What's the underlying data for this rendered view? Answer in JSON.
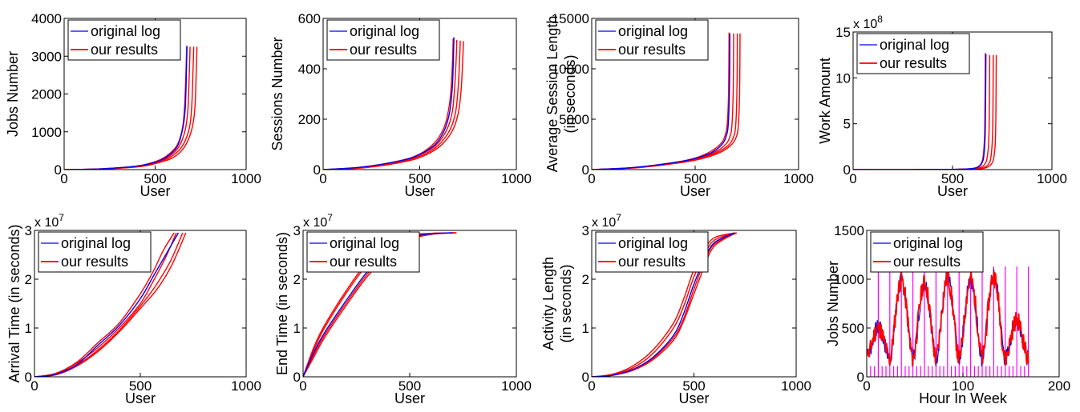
{
  "series_legend": [
    "original log",
    "our results"
  ],
  "colors": {
    "original": "#0000ff",
    "results": "#ff0000",
    "marker": "#ff00ff",
    "axis": "#000000"
  },
  "chart_data": [
    {
      "type": "line",
      "xlabel": "User",
      "ylabel": [
        "Jobs Number"
      ],
      "xlim": [
        0,
        1000
      ],
      "ylim": [
        0,
        4000
      ],
      "xticks": [
        "0",
        "500",
        "1000"
      ],
      "yticks": [
        "0",
        "1000",
        "2000",
        "3000",
        "4000"
      ],
      "exponent": "",
      "curve": "cdf_tail",
      "series": [
        {
          "name": "original log",
          "x": [
            0,
            200,
            400,
            500,
            560,
            620,
            650,
            665,
            672,
            675
          ],
          "y": [
            0,
            20,
            90,
            200,
            330,
            600,
            1050,
            1600,
            2600,
            3270
          ]
        },
        {
          "name": "our results",
          "x": [
            0,
            200,
            400,
            500,
            560,
            620,
            650,
            662,
            670,
            673
          ],
          "y": [
            0,
            20,
            95,
            210,
            350,
            640,
            1100,
            1700,
            2700,
            3270
          ]
        },
        {
          "name": "",
          "x": [
            0,
            200,
            400,
            500,
            570,
            630,
            665,
            680,
            688,
            692
          ],
          "y": [
            0,
            18,
            85,
            195,
            330,
            600,
            1050,
            1600,
            2600,
            3250
          ]
        },
        {
          "name": "",
          "x": [
            0,
            200,
            400,
            500,
            580,
            645,
            685,
            700,
            708,
            712
          ],
          "y": [
            0,
            16,
            80,
            185,
            320,
            590,
            1040,
            1600,
            2600,
            3250
          ]
        },
        {
          "name": "",
          "x": [
            0,
            220,
            420,
            520,
            600,
            660,
            700,
            718,
            726,
            730
          ],
          "y": [
            0,
            16,
            80,
            185,
            320,
            590,
            1040,
            1600,
            2600,
            3250
          ]
        }
      ]
    },
    {
      "type": "line",
      "xlabel": "User",
      "ylabel": [
        "Sessions Number"
      ],
      "xlim": [
        0,
        1000
      ],
      "ylim": [
        0,
        600
      ],
      "xticks": [
        "0",
        "500",
        "1000"
      ],
      "yticks": [
        "0",
        "200",
        "400",
        "600"
      ],
      "exponent": "",
      "curve": "cdf_tail",
      "series": [
        {
          "name": "original log",
          "x": [
            0,
            200,
            400,
            500,
            580,
            630,
            655,
            668,
            674,
            677
          ],
          "y": [
            0,
            10,
            35,
            60,
            100,
            160,
            230,
            320,
            430,
            525
          ]
        },
        {
          "name": "our results",
          "x": [
            0,
            200,
            400,
            500,
            575,
            625,
            650,
            663,
            670,
            673
          ],
          "y": [
            0,
            10,
            36,
            62,
            105,
            165,
            240,
            330,
            440,
            520
          ]
        },
        {
          "name": "",
          "x": [
            0,
            200,
            400,
            500,
            585,
            640,
            668,
            680,
            688,
            692
          ],
          "y": [
            0,
            9,
            33,
            58,
            98,
            158,
            228,
            318,
            428,
            515
          ]
        },
        {
          "name": "",
          "x": [
            0,
            200,
            400,
            510,
            595,
            655,
            685,
            698,
            706,
            710
          ],
          "y": [
            0,
            8,
            31,
            56,
            96,
            156,
            226,
            316,
            426,
            512
          ]
        },
        {
          "name": "",
          "x": [
            0,
            220,
            420,
            525,
            610,
            670,
            700,
            714,
            722,
            726
          ],
          "y": [
            0,
            8,
            31,
            56,
            96,
            156,
            226,
            316,
            426,
            510
          ]
        }
      ]
    },
    {
      "type": "line",
      "xlabel": "User",
      "ylabel": [
        "Average Session Length",
        "(in seconds)"
      ],
      "xlim": [
        0,
        1000
      ],
      "ylim": [
        0,
        15000
      ],
      "xticks": [
        "0",
        "500",
        "1000"
      ],
      "yticks": [
        "0",
        "5000",
        "10000",
        "15000"
      ],
      "exponent": "",
      "curve": "cdf_tail",
      "series": [
        {
          "name": "original log",
          "x": [
            0,
            200,
            400,
            500,
            580,
            630,
            650,
            660,
            666,
            668
          ],
          "y": [
            0,
            200,
            700,
            1100,
            1700,
            2500,
            3300,
            4500,
            8000,
            13500
          ]
        },
        {
          "name": "our results",
          "x": [
            0,
            200,
            400,
            500,
            575,
            625,
            645,
            656,
            662,
            664
          ],
          "y": [
            0,
            210,
            720,
            1150,
            1800,
            2600,
            3400,
            4700,
            8200,
            13600
          ]
        },
        {
          "name": "",
          "x": [
            0,
            200,
            400,
            505,
            590,
            645,
            668,
            678,
            684,
            686
          ],
          "y": [
            0,
            190,
            680,
            1080,
            1680,
            2450,
            3250,
            4450,
            7900,
            13500
          ]
        },
        {
          "name": "",
          "x": [
            0,
            200,
            400,
            510,
            600,
            660,
            685,
            696,
            702,
            704
          ],
          "y": [
            0,
            180,
            660,
            1050,
            1650,
            2400,
            3200,
            4400,
            7800,
            13500
          ]
        },
        {
          "name": "",
          "x": [
            0,
            220,
            420,
            525,
            615,
            672,
            698,
            709,
            715,
            717
          ],
          "y": [
            0,
            180,
            660,
            1050,
            1650,
            2400,
            3200,
            4400,
            7800,
            13500
          ]
        }
      ]
    },
    {
      "type": "line",
      "xlabel": "User",
      "ylabel": [
        "Work Amount"
      ],
      "xlim": [
        0,
        1000
      ],
      "ylim": [
        0,
        15
      ],
      "xticks": [
        "0",
        "500",
        "1000"
      ],
      "yticks": [
        "0",
        "5",
        "10",
        "15"
      ],
      "exponent": "x 10",
      "exponent_power": "8",
      "curve": "cdf_tail",
      "series": [
        {
          "name": "original log",
          "x": [
            0,
            300,
            500,
            580,
            620,
            645,
            658,
            665,
            668
          ],
          "y": [
            0,
            0.01,
            0.03,
            0.08,
            0.2,
            0.6,
            1.6,
            4.5,
            12.6
          ]
        },
        {
          "name": "our results",
          "x": [
            0,
            300,
            500,
            578,
            618,
            642,
            655,
            662,
            665
          ],
          "y": [
            0,
            0.01,
            0.03,
            0.08,
            0.2,
            0.6,
            1.6,
            4.6,
            12.7
          ]
        },
        {
          "name": "",
          "x": [
            0,
            300,
            500,
            590,
            635,
            662,
            676,
            684,
            687
          ],
          "y": [
            0,
            0.01,
            0.03,
            0.07,
            0.19,
            0.58,
            1.55,
            4.4,
            12.5
          ]
        },
        {
          "name": "",
          "x": [
            0,
            300,
            500,
            600,
            650,
            680,
            694,
            702,
            705
          ],
          "y": [
            0,
            0.01,
            0.03,
            0.07,
            0.18,
            0.56,
            1.5,
            4.3,
            12.5
          ]
        },
        {
          "name": "",
          "x": [
            0,
            300,
            520,
            615,
            665,
            694,
            709,
            717,
            720
          ],
          "y": [
            0,
            0.01,
            0.03,
            0.07,
            0.18,
            0.56,
            1.5,
            4.3,
            12.5
          ]
        }
      ]
    },
    {
      "type": "line",
      "xlabel": "User",
      "ylabel": [
        "Arrival Time (in seconds)"
      ],
      "xlim": [
        0,
        1000
      ],
      "ylim": [
        0,
        3
      ],
      "xticks": [
        "0",
        "500",
        "1000"
      ],
      "yticks": [
        "0",
        "1",
        "2",
        "3"
      ],
      "exponent": "x 10",
      "exponent_power": "7",
      "curve": "smooth",
      "series": [
        {
          "name": "original log",
          "x": [
            0,
            100,
            200,
            300,
            400,
            500,
            560,
            620,
            680
          ],
          "y": [
            0,
            0.05,
            0.25,
            0.65,
            1.05,
            1.6,
            2.05,
            2.5,
            2.95
          ]
        },
        {
          "name": "our results",
          "x": [
            0,
            100,
            200,
            300,
            400,
            500,
            560,
            620,
            670
          ],
          "y": [
            0,
            0.06,
            0.28,
            0.6,
            1.0,
            1.5,
            1.95,
            2.45,
            2.95
          ]
        },
        {
          "name": "",
          "x": [
            0,
            100,
            200,
            300,
            400,
            500,
            570,
            640,
            700
          ],
          "y": [
            0,
            0.05,
            0.24,
            0.55,
            0.95,
            1.45,
            1.85,
            2.35,
            2.95
          ]
        },
        {
          "name": "",
          "x": [
            0,
            100,
            200,
            300,
            400,
            500,
            580,
            650,
            715
          ],
          "y": [
            0,
            0.04,
            0.22,
            0.52,
            0.92,
            1.4,
            1.8,
            2.3,
            2.95
          ]
        },
        {
          "name": "",
          "x": [
            0,
            100,
            200,
            300,
            400,
            500,
            560,
            610,
            660
          ],
          "y": [
            0,
            0.07,
            0.3,
            0.7,
            1.1,
            1.7,
            2.15,
            2.6,
            2.95
          ]
        }
      ]
    },
    {
      "type": "line",
      "xlabel": "User",
      "ylabel": [
        "End Time (in seconds)"
      ],
      "xlim": [
        0,
        1000
      ],
      "ylim": [
        0,
        3
      ],
      "xticks": [
        "0",
        "500",
        "1000"
      ],
      "yticks": [
        "0",
        "1",
        "2",
        "3"
      ],
      "exponent": "x 10",
      "exponent_power": "7",
      "curve": "smooth",
      "series": [
        {
          "name": "original log",
          "x": [
            0,
            50,
            100,
            200,
            300,
            400,
            500,
            600,
            700
          ],
          "y": [
            0,
            0.5,
            0.9,
            1.55,
            2.15,
            2.6,
            2.85,
            2.93,
            2.95
          ]
        },
        {
          "name": "our results",
          "x": [
            0,
            50,
            100,
            200,
            300,
            400,
            500,
            600,
            720
          ],
          "y": [
            0,
            0.55,
            1.0,
            1.7,
            2.3,
            2.7,
            2.88,
            2.94,
            2.95
          ]
        },
        {
          "name": "",
          "x": [
            0,
            50,
            100,
            200,
            300,
            400,
            500,
            600,
            710
          ],
          "y": [
            0,
            0.45,
            0.85,
            1.5,
            2.1,
            2.55,
            2.82,
            2.92,
            2.95
          ]
        },
        {
          "name": "",
          "x": [
            0,
            50,
            100,
            200,
            300,
            400,
            500,
            600,
            715
          ],
          "y": [
            0,
            0.6,
            1.05,
            1.75,
            2.35,
            2.72,
            2.9,
            2.94,
            2.95
          ]
        },
        {
          "name": "",
          "x": [
            0,
            50,
            100,
            200,
            300,
            400,
            500,
            600,
            705
          ],
          "y": [
            0,
            0.4,
            0.8,
            1.45,
            2.05,
            2.5,
            2.8,
            2.92,
            2.95
          ]
        }
      ]
    },
    {
      "type": "line",
      "xlabel": "User",
      "ylabel": [
        "Activity Length",
        "(in seconds)"
      ],
      "xlim": [
        0,
        1000
      ],
      "ylim": [
        0,
        3
      ],
      "xticks": [
        "0",
        "500",
        "1000"
      ],
      "yticks": [
        "0",
        "1",
        "2",
        "3"
      ],
      "exponent": "x 10",
      "exponent_power": "7",
      "curve": "smooth",
      "series": [
        {
          "name": "original log",
          "x": [
            0,
            100,
            200,
            300,
            400,
            450,
            500,
            550,
            600,
            700
          ],
          "y": [
            0,
            0.03,
            0.15,
            0.4,
            0.85,
            1.3,
            1.9,
            2.4,
            2.75,
            2.95
          ]
        },
        {
          "name": "our results",
          "x": [
            0,
            100,
            200,
            300,
            400,
            450,
            500,
            550,
            600,
            700
          ],
          "y": [
            0,
            0.04,
            0.18,
            0.48,
            1.0,
            1.45,
            2.05,
            2.5,
            2.8,
            2.95
          ]
        },
        {
          "name": "",
          "x": [
            0,
            100,
            200,
            300,
            400,
            450,
            500,
            550,
            600,
            710
          ],
          "y": [
            0,
            0.03,
            0.14,
            0.38,
            0.8,
            1.2,
            1.8,
            2.35,
            2.72,
            2.95
          ]
        },
        {
          "name": "",
          "x": [
            0,
            100,
            200,
            300,
            400,
            450,
            500,
            550,
            600,
            700
          ],
          "y": [
            0,
            0.05,
            0.22,
            0.55,
            1.1,
            1.6,
            2.2,
            2.6,
            2.85,
            2.95
          ]
        },
        {
          "name": "",
          "x": [
            0,
            100,
            200,
            300,
            400,
            450,
            500,
            550,
            600,
            705
          ],
          "y": [
            0,
            0.03,
            0.13,
            0.35,
            0.75,
            1.15,
            1.7,
            2.25,
            2.68,
            2.95
          ]
        }
      ]
    },
    {
      "type": "line",
      "xlabel": "Hour In Week",
      "ylabel": [
        "Jobs Number"
      ],
      "xlim": [
        0,
        200
      ],
      "ylim": [
        0,
        1500
      ],
      "xticks": [
        "0",
        "100",
        "200"
      ],
      "yticks": [
        "0",
        "500",
        "1000",
        "1500"
      ],
      "exponent": "",
      "curve": "weekly",
      "marker_low": 110,
      "marker_high": 1130,
      "marker_every": 4,
      "marker_high_every": 12,
      "marker_end": 168,
      "weekly_peaks": [
        560,
        1130,
        1100,
        1150,
        1130,
        1180,
        650
      ],
      "weekly_trough": 180
    }
  ]
}
